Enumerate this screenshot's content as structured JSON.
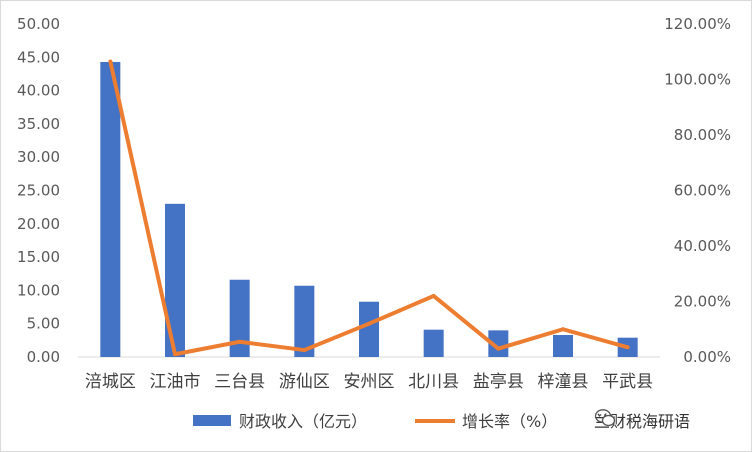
{
  "chart_data": {
    "type": "bar",
    "categories": [
      "涪城区",
      "江油市",
      "三台县",
      "游仙区",
      "安州区",
      "北川县",
      "盐亭县",
      "梓潼县",
      "平武县"
    ],
    "series": [
      {
        "name": "财政收入（亿元）",
        "type": "bar",
        "axis": "left",
        "color": "#4472c4",
        "values": [
          44.3,
          23.0,
          11.6,
          10.7,
          8.3,
          4.1,
          4.0,
          3.3,
          2.9
        ]
      },
      {
        "name": "增长率（%）",
        "type": "line",
        "axis": "right",
        "color": "#ed7d31",
        "values": [
          1.065,
          0.01,
          0.055,
          0.025,
          0.12,
          0.22,
          0.03,
          0.1,
          0.035
        ]
      }
    ],
    "y_left": {
      "ylim": [
        0,
        50
      ],
      "ticks": [
        "0.00",
        "5.00",
        "10.00",
        "15.00",
        "20.00",
        "25.00",
        "30.00",
        "35.00",
        "40.00",
        "45.00",
        "50.00"
      ]
    },
    "y_right": {
      "ylim": [
        0,
        1.2
      ],
      "ticks": [
        "0.00%",
        "20.00%",
        "40.00%",
        "60.00%",
        "80.00%",
        "100.00%",
        "120.00%"
      ]
    },
    "grid": false,
    "legend": "bottom"
  },
  "watermark": {
    "text": "兰财税海研语",
    "icon": "wechat-icon"
  }
}
